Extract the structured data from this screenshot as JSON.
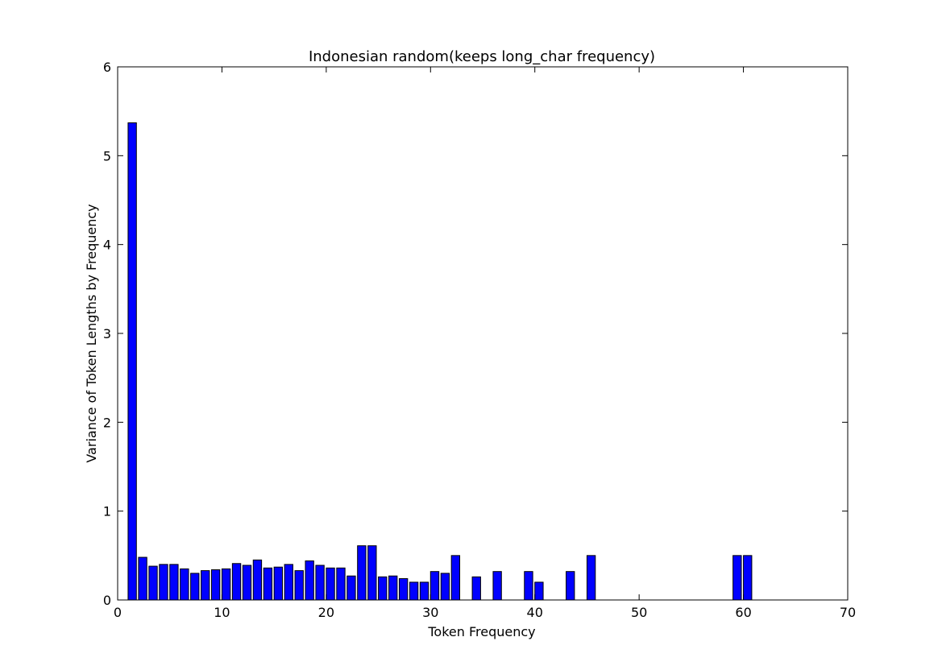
{
  "chart_data": {
    "type": "bar",
    "title": "Indonesian random(keeps long_char frequency)",
    "xlabel": "Token Frequency",
    "ylabel": "Variance of Token Lengths by Frequency",
    "xlim": [
      0,
      70
    ],
    "ylim": [
      0,
      6
    ],
    "xticks": [
      "0",
      "10",
      "20",
      "30",
      "40",
      "50",
      "60",
      "70"
    ],
    "yticks": [
      "0",
      "1",
      "2",
      "3",
      "4",
      "5",
      "6"
    ],
    "bar_width": 0.8,
    "bar_color": "#0000ff",
    "edge_color": "#000000",
    "grid": false,
    "x": [
      1,
      2,
      3,
      4,
      5,
      6,
      7,
      8,
      9,
      10,
      11,
      12,
      13,
      14,
      15,
      16,
      17,
      18,
      19,
      20,
      21,
      22,
      23,
      24,
      25,
      26,
      27,
      28,
      29,
      30,
      31,
      32,
      34,
      36,
      39,
      40,
      43,
      45,
      59,
      60
    ],
    "values": [
      5.37,
      0.48,
      0.38,
      0.4,
      0.4,
      0.35,
      0.3,
      0.33,
      0.34,
      0.35,
      0.41,
      0.39,
      0.45,
      0.36,
      0.37,
      0.4,
      0.33,
      0.44,
      0.39,
      0.36,
      0.36,
      0.27,
      0.61,
      0.61,
      0.26,
      0.27,
      0.24,
      0.2,
      0.2,
      0.32,
      0.3,
      0.5,
      0.26,
      0.32,
      0.32,
      0.2,
      0.32,
      0.5,
      0.5,
      0.5
    ]
  }
}
